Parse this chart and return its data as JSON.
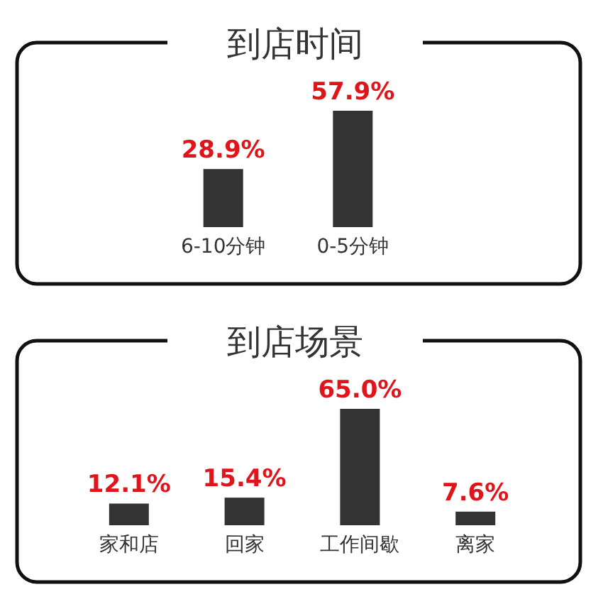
{
  "chart_data": [
    {
      "type": "bar",
      "title": "到店时间",
      "categories": [
        "6-10分钟",
        "0-5分钟"
      ],
      "values": [
        28.9,
        57.9
      ],
      "color": "#333333",
      "data_labels": true,
      "value_labels": [
        "28.9%",
        "57.9%"
      ]
    },
    {
      "type": "bar",
      "title": "到店场景",
      "categories": [
        "家和店",
        "回家",
        "工作间歇",
        "离家"
      ],
      "values": [
        12.1,
        15.4,
        65.0,
        7.6
      ],
      "color": "#333333",
      "data_labels": true,
      "value_labels": [
        "12.1%",
        "15.4%",
        "65.0%",
        "7.6%"
      ]
    }
  ]
}
